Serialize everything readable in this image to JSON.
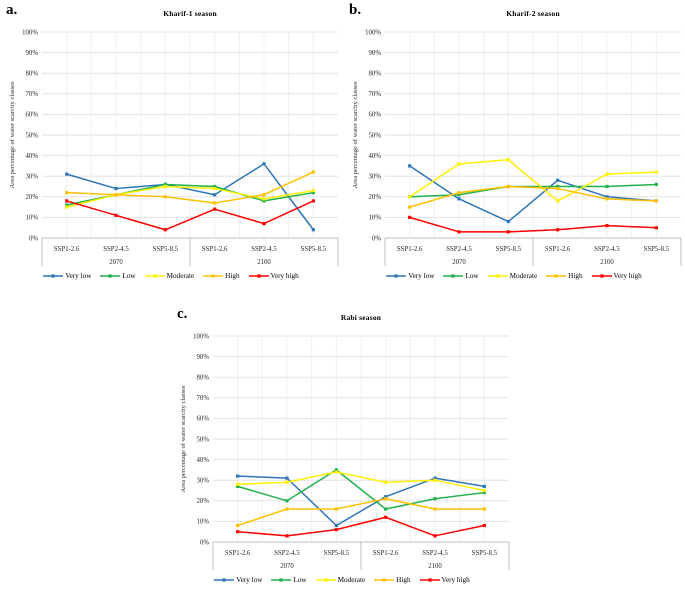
{
  "figure": {
    "y_axis_label": "Area percentage of water scarcity classes",
    "x_group_labels": [
      "2070",
      "2100"
    ]
  },
  "panels": [
    {
      "panel_label": "a."
    },
    {
      "panel_label": "b."
    },
    {
      "panel_label": "c."
    }
  ],
  "chart_data": [
    {
      "type": "line",
      "title": "Kharif-1 season",
      "categories": [
        "SSP1-2.6",
        "SSP2-4.5",
        "SSP5-8.5",
        "SSP1-2.6",
        "SSP2-4.5",
        "SSP5-8.5"
      ],
      "category_groups": [
        "2070",
        "2100"
      ],
      "ylabel": "Area percentage of water scarcity classes",
      "ylim": [
        0,
        100
      ],
      "y_tick_step": 10,
      "y_tick_format": "percent",
      "grid": true,
      "legend_position": "bottom",
      "series": [
        {
          "name": "Very low",
          "color": "#2E75B6",
          "values": [
            31,
            24,
            26,
            21,
            36,
            4
          ]
        },
        {
          "name": "Low",
          "color": "#22B14C",
          "values": [
            16,
            21,
            26,
            25,
            18,
            22
          ]
        },
        {
          "name": "Moderate",
          "color": "#FFF100",
          "values": [
            15,
            21,
            25,
            24,
            19,
            23
          ]
        },
        {
          "name": "High",
          "color": "#FFC000",
          "values": [
            22,
            21,
            20,
            17,
            21,
            32
          ]
        },
        {
          "name": "Very high",
          "color": "#FF0000",
          "values": [
            18,
            11,
            4,
            14,
            7,
            18
          ]
        }
      ]
    },
    {
      "type": "line",
      "title": "Kharif-2 season",
      "categories": [
        "SSP1-2.6",
        "SSP2-4.5",
        "SSP5-8.5",
        "SSP1-2.6",
        "SSP2-4.5",
        "SSP5-8.5"
      ],
      "category_groups": [
        "2070",
        "2100"
      ],
      "ylabel": "Area percentage of water scarcity classes",
      "ylim": [
        0,
        100
      ],
      "y_tick_step": 10,
      "y_tick_format": "percent",
      "grid": true,
      "legend_position": "bottom",
      "series": [
        {
          "name": "Very low",
          "color": "#2E75B6",
          "values": [
            35,
            19,
            8,
            28,
            20,
            18
          ]
        },
        {
          "name": "Low",
          "color": "#22B14C",
          "values": [
            20,
            21,
            25,
            25,
            25,
            26
          ]
        },
        {
          "name": "Moderate",
          "color": "#FFF100",
          "values": [
            20,
            36,
            38,
            18,
            31,
            32
          ]
        },
        {
          "name": "High",
          "color": "#FFC000",
          "values": [
            15,
            22,
            25,
            24,
            19,
            18
          ]
        },
        {
          "name": "Very high",
          "color": "#FF0000",
          "values": [
            10,
            3,
            3,
            4,
            6,
            5
          ]
        }
      ]
    },
    {
      "type": "line",
      "title": "Rabi season",
      "categories": [
        "SSP1-2.6",
        "SSP2-4.5",
        "SSP5-8.5",
        "SSP1-2.6",
        "SSP2-4.5",
        "SSP5-8.5"
      ],
      "category_groups": [
        "2070",
        "2100"
      ],
      "ylabel": "Area percentage of water scarcity classes",
      "ylim": [
        0,
        100
      ],
      "y_tick_step": 10,
      "y_tick_format": "percent",
      "grid": true,
      "legend_position": "bottom",
      "series": [
        {
          "name": "Very low",
          "color": "#2E75B6",
          "values": [
            32,
            31,
            8,
            22,
            31,
            27
          ]
        },
        {
          "name": "Low",
          "color": "#22B14C",
          "values": [
            27,
            20,
            35,
            16,
            21,
            24
          ]
        },
        {
          "name": "Moderate",
          "color": "#FFF100",
          "values": [
            28,
            29,
            34,
            29,
            30,
            25
          ]
        },
        {
          "name": "High",
          "color": "#FFC000",
          "values": [
            8,
            16,
            16,
            21,
            16,
            16
          ]
        },
        {
          "name": "Very high",
          "color": "#FF0000",
          "values": [
            5,
            3,
            6,
            12,
            3,
            8
          ]
        }
      ]
    }
  ]
}
